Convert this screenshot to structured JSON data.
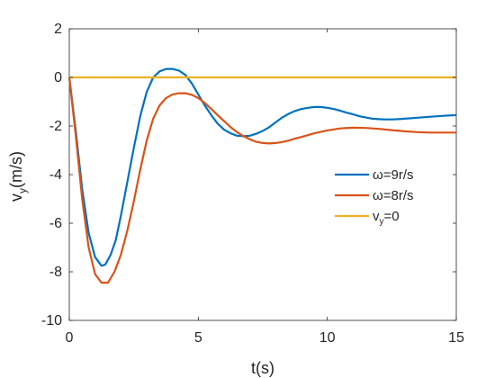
{
  "chart_data": {
    "type": "line",
    "xlabel": "t(s)",
    "ylabel": "v",
    "ylabel_sub": "y",
    "ylabel_suffix": "(m/s)",
    "xlim": [
      0,
      15
    ],
    "ylim": [
      -10,
      2
    ],
    "xticks": [
      "0",
      "5",
      "10",
      "15"
    ],
    "yticks": [
      "2",
      "0",
      "-2",
      "-4",
      "-6",
      "-8",
      "-10"
    ],
    "grid": false,
    "legend_position": "right-middle",
    "series": [
      {
        "name": "ω=9r/s",
        "name_parts": [
          "ω",
          "=9r/s",
          ""
        ],
        "color": "#0072BD",
        "x": [
          0,
          0.25,
          0.5,
          0.75,
          1.0,
          1.25,
          1.4,
          1.6,
          1.8,
          2.0,
          2.25,
          2.5,
          2.75,
          3.0,
          3.25,
          3.5,
          3.75,
          4.0,
          4.25,
          4.5,
          4.75,
          5.0,
          5.25,
          5.5,
          5.75,
          6.0,
          6.25,
          6.5,
          6.75,
          7.0,
          7.25,
          7.5,
          7.75,
          8.0,
          8.25,
          8.5,
          8.75,
          9.0,
          9.25,
          9.5,
          9.75,
          10.0,
          10.25,
          10.5,
          10.75,
          11.0,
          11.25,
          11.5,
          11.75,
          12.0,
          12.25,
          12.5,
          12.75,
          13.0,
          13.5,
          14.0,
          14.5,
          15.0
        ],
        "y": [
          0,
          -2.2,
          -4.6,
          -6.4,
          -7.4,
          -7.75,
          -7.7,
          -7.3,
          -6.7,
          -5.7,
          -4.3,
          -2.9,
          -1.6,
          -0.6,
          0.0,
          0.25,
          0.35,
          0.35,
          0.28,
          0.1,
          -0.25,
          -0.7,
          -1.15,
          -1.55,
          -1.9,
          -2.15,
          -2.3,
          -2.4,
          -2.42,
          -2.4,
          -2.32,
          -2.2,
          -2.05,
          -1.85,
          -1.65,
          -1.5,
          -1.38,
          -1.3,
          -1.25,
          -1.22,
          -1.22,
          -1.25,
          -1.3,
          -1.37,
          -1.45,
          -1.52,
          -1.6,
          -1.65,
          -1.7,
          -1.72,
          -1.73,
          -1.73,
          -1.72,
          -1.7,
          -1.66,
          -1.62,
          -1.58,
          -1.55
        ]
      },
      {
        "name": "ω=8r/s",
        "name_parts": [
          "ω",
          "=8r/s",
          ""
        ],
        "color": "#D95319",
        "x": [
          0,
          0.25,
          0.5,
          0.75,
          1.0,
          1.25,
          1.5,
          1.75,
          2.0,
          2.25,
          2.5,
          2.75,
          3.0,
          3.25,
          3.5,
          3.75,
          4.0,
          4.25,
          4.5,
          4.75,
          5.0,
          5.25,
          5.5,
          5.75,
          6.0,
          6.25,
          6.5,
          6.75,
          7.0,
          7.25,
          7.5,
          7.75,
          8.0,
          8.25,
          8.5,
          8.75,
          9.0,
          9.5,
          10.0,
          10.5,
          11.0,
          11.5,
          12.0,
          12.5,
          13.0,
          13.5,
          14.0,
          14.5,
          15.0
        ],
        "y": [
          0,
          -2.4,
          -5.0,
          -7.0,
          -8.1,
          -8.45,
          -8.45,
          -8.0,
          -7.3,
          -6.3,
          -5.1,
          -3.8,
          -2.6,
          -1.7,
          -1.15,
          -0.85,
          -0.7,
          -0.65,
          -0.65,
          -0.72,
          -0.85,
          -1.05,
          -1.3,
          -1.55,
          -1.8,
          -2.05,
          -2.25,
          -2.42,
          -2.55,
          -2.65,
          -2.7,
          -2.72,
          -2.7,
          -2.66,
          -2.6,
          -2.52,
          -2.45,
          -2.3,
          -2.18,
          -2.1,
          -2.07,
          -2.08,
          -2.12,
          -2.17,
          -2.22,
          -2.25,
          -2.27,
          -2.27,
          -2.27
        ]
      },
      {
        "name": "vy=0",
        "name_parts": [
          "v",
          "=0",
          "y"
        ],
        "color": "#EDB120",
        "x": [
          0,
          15
        ],
        "y": [
          0,
          0
        ]
      }
    ]
  }
}
